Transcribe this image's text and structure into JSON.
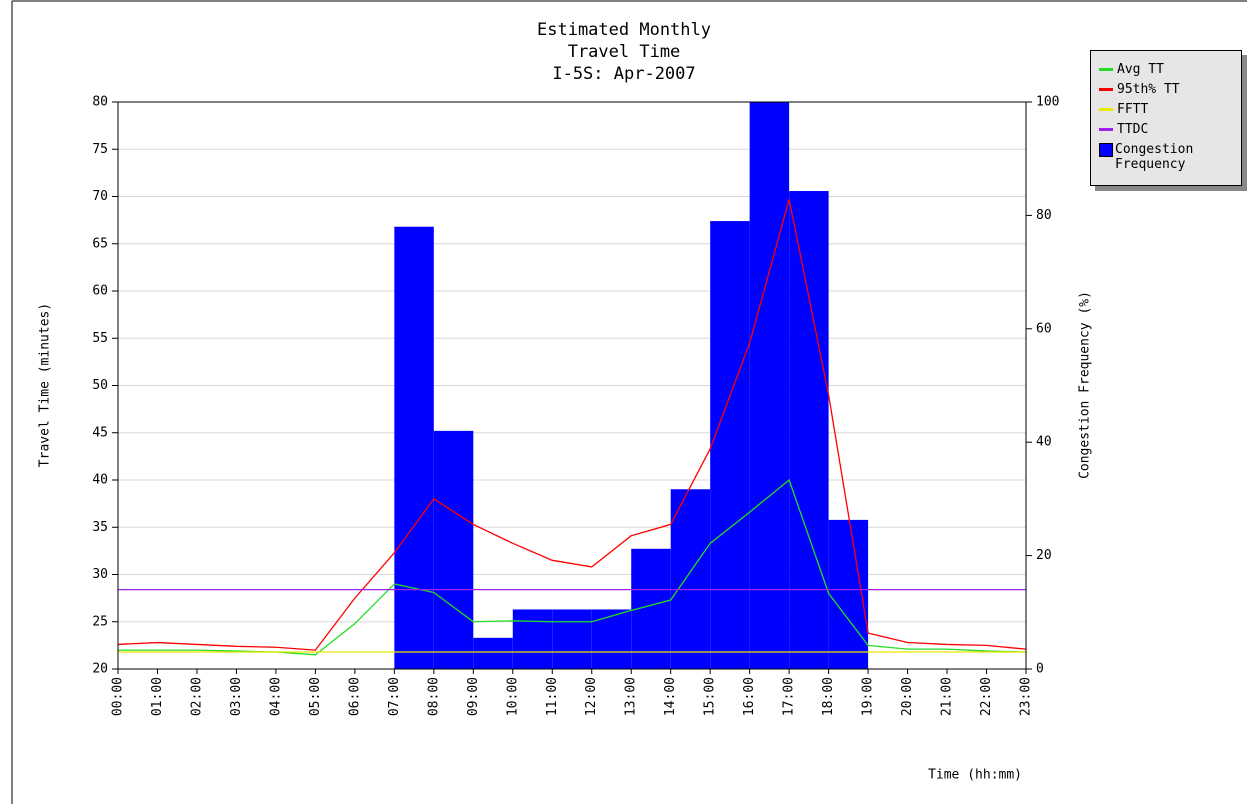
{
  "chart_data": {
    "type": "combo",
    "title": [
      "Estimated Monthly",
      "Travel Time",
      "I-5S: Apr-2007"
    ],
    "x_label": "Time (hh:mm)",
    "y_label": "Travel Time (minutes)",
    "y2_label": "Congestion Frequency (%)",
    "categories": [
      "00:00",
      "01:00",
      "02:00",
      "03:00",
      "04:00",
      "05:00",
      "06:00",
      "07:00",
      "08:00",
      "09:00",
      "10:00",
      "11:00",
      "12:00",
      "13:00",
      "14:00",
      "15:00",
      "16:00",
      "17:00",
      "18:00",
      "19:00",
      "20:00",
      "21:00",
      "22:00",
      "23:00"
    ],
    "ylim": [
      20,
      80
    ],
    "yticks": [
      20,
      25,
      30,
      35,
      40,
      45,
      50,
      55,
      60,
      65,
      70,
      75,
      80
    ],
    "y2lim": [
      0,
      100
    ],
    "y2ticks": [
      0,
      20,
      40,
      60,
      80,
      100
    ],
    "grid": true,
    "series": [
      {
        "name": "Avg TT",
        "type": "line",
        "color": "#22dd22",
        "values": [
          22,
          22,
          22,
          21.9,
          21.8,
          21.5,
          24.8,
          29,
          28.1,
          25,
          25.1,
          25,
          25,
          26.2,
          27.3,
          33.3,
          36.6,
          40,
          28,
          22.5,
          22.1,
          22.1,
          21.9,
          21.8
        ]
      },
      {
        "name": "95th% TT",
        "type": "line",
        "color": "#ff0000",
        "values": [
          22.6,
          22.8,
          22.6,
          22.4,
          22.3,
          22,
          27.5,
          32.3,
          38,
          35.3,
          33.3,
          31.5,
          30.8,
          34.1,
          35.3,
          43.3,
          54.5,
          69.7,
          49,
          23.8,
          22.8,
          22.6,
          22.5,
          22.1
        ]
      },
      {
        "name": "FFTT",
        "type": "line",
        "color": "#e8e800",
        "values": [
          21.8,
          21.8,
          21.8,
          21.8,
          21.8,
          21.8,
          21.8,
          21.8,
          21.8,
          21.8,
          21.8,
          21.8,
          21.8,
          21.8,
          21.8,
          21.8,
          21.8,
          21.8,
          21.8,
          21.8,
          21.8,
          21.8,
          21.8,
          21.8
        ]
      },
      {
        "name": "TTDC",
        "type": "line",
        "color": "#a020f0",
        "values": [
          28.4,
          28.4,
          28.4,
          28.4,
          28.4,
          28.4,
          28.4,
          28.4,
          28.4,
          28.4,
          28.4,
          28.4,
          28.4,
          28.4,
          28.4,
          28.4,
          28.4,
          28.4,
          28.4,
          28.4,
          28.4,
          28.4,
          28.4,
          28.4
        ]
      },
      {
        "name": "Congestion Frequency",
        "type": "bar",
        "axis": "y2",
        "color": "#0000ff",
        "values": [
          0,
          0,
          0,
          0,
          0,
          0,
          0,
          78,
          42,
          5.5,
          10.5,
          10.5,
          10.5,
          21.2,
          31.7,
          79,
          100,
          84.3,
          26.3,
          0,
          0,
          0,
          0,
          0
        ]
      }
    ]
  }
}
